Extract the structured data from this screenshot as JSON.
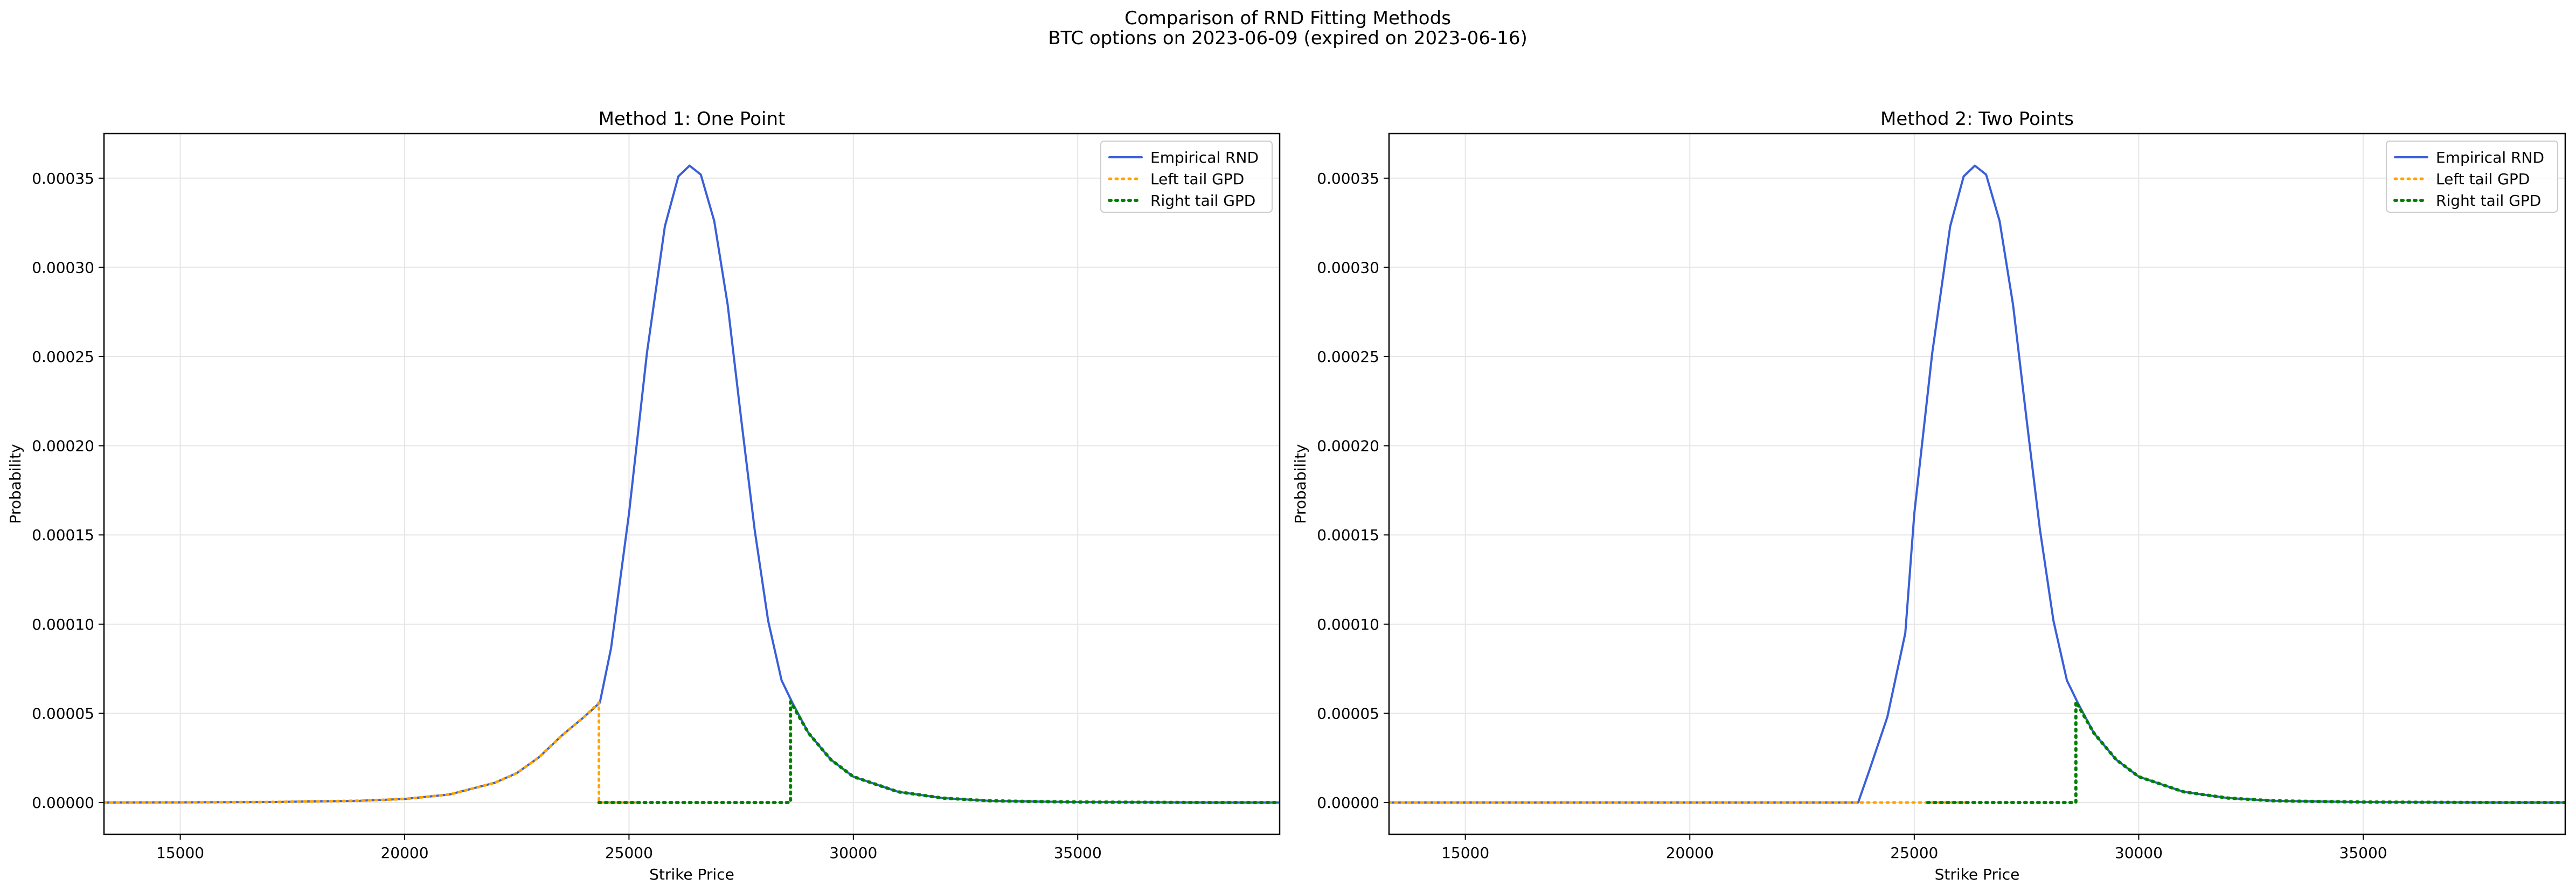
{
  "figure": {
    "suptitle_line1": "Comparison of RND Fitting Methods",
    "suptitle_line2": "BTC options on 2023-06-09 (expired on 2023-06-16)"
  },
  "colors": {
    "empirical": "#3a5fd9",
    "left_tail": "#ffa500",
    "right_tail": "#008000",
    "grid": "#e6e6e6",
    "axes": "#000000",
    "legend_border": "#cccccc"
  },
  "chart_data": [
    {
      "type": "line",
      "title": "Method 1: One Point",
      "xlabel": "Strike Price",
      "ylabel": "Probability",
      "xlim": [
        13300,
        39500
      ],
      "ylim": [
        -1.78e-05,
        0.000375
      ],
      "xticks": [
        15000,
        20000,
        25000,
        30000,
        35000
      ],
      "xtick_labels": [
        "15000",
        "20000",
        "25000",
        "30000",
        "35000"
      ],
      "yticks": [
        0,
        5e-05,
        0.0001,
        0.00015,
        0.0002,
        0.00025,
        0.0003,
        0.00035
      ],
      "ytick_labels": [
        "0.00000",
        "0.00005",
        "0.00010",
        "0.00015",
        "0.00020",
        "0.00025",
        "0.00030",
        "0.00035"
      ],
      "grid": true,
      "legend_position": "top-right",
      "legend": [
        "Empirical RND",
        "Left tail GPD",
        "Right tail GPD"
      ],
      "series": [
        {
          "name": "Empirical RND",
          "style": "solid",
          "x": [
            13300,
            15000,
            17000,
            19000,
            20000,
            21000,
            22000,
            22500,
            23000,
            23500,
            24000,
            24350,
            24600,
            25000,
            25400,
            25800,
            26100,
            26350,
            26600,
            26900,
            27200,
            27500,
            27800,
            28100,
            28400,
            28650,
            29000,
            29500,
            30000,
            31000,
            32000,
            33000,
            34000,
            35000,
            36000,
            37000,
            38000,
            39500
          ],
          "y": [
            0.0,
            1e-07,
            3e-07,
            1e-06,
            2e-06,
            4.5e-06,
            1.1e-05,
            1.65e-05,
            2.55e-05,
            3.75e-05,
            4.8e-05,
            5.6e-05,
            8.65e-05,
            0.000162,
            0.000252,
            0.000323,
            0.000351,
            0.000357,
            0.000352,
            0.000326,
            0.000279,
            0.000215,
            0.000153,
            0.000102,
            6.85e-05,
            5.55e-05,
            3.9e-05,
            2.4e-05,
            1.45e-05,
            6e-06,
            2.5e-06,
            1e-06,
            6e-07,
            3e-07,
            2e-07,
            1e-07,
            0.0,
            0.0
          ]
        },
        {
          "name": "Left tail GPD",
          "style": "dotted",
          "x": [
            13300,
            15000,
            17000,
            19000,
            20000,
            21000,
            22000,
            22500,
            23000,
            23500,
            24000,
            24330,
            24330,
            25200
          ],
          "y": [
            0.0,
            1e-07,
            3e-07,
            1e-06,
            2e-06,
            4.5e-06,
            1.1e-05,
            1.65e-05,
            2.55e-05,
            3.75e-05,
            4.8e-05,
            5.6e-05,
            0.0,
            0.0
          ]
        },
        {
          "name": "Right tail GPD",
          "style": "dotted",
          "x": [
            24330,
            28600,
            28600,
            29000,
            29500,
            30000,
            31000,
            32000,
            33000,
            34000,
            35000,
            36000,
            37000,
            38000,
            39500
          ],
          "y": [
            0.0,
            0.0,
            5.65e-05,
            3.9e-05,
            2.4e-05,
            1.45e-05,
            6e-06,
            2.5e-06,
            1e-06,
            6e-07,
            3e-07,
            2e-07,
            1e-07,
            0.0,
            0.0
          ]
        }
      ]
    },
    {
      "type": "line",
      "title": "Method 2: Two Points",
      "xlabel": "Strike Price",
      "ylabel": "Probability",
      "xlim": [
        13300,
        39500
      ],
      "ylim": [
        -1.78e-05,
        0.000375
      ],
      "xticks": [
        15000,
        20000,
        25000,
        30000,
        35000
      ],
      "xtick_labels": [
        "15000",
        "20000",
        "25000",
        "30000",
        "35000"
      ],
      "yticks": [
        0,
        5e-05,
        0.0001,
        0.00015,
        0.0002,
        0.00025,
        0.0003,
        0.00035
      ],
      "ytick_labels": [
        "0.00000",
        "0.00005",
        "0.00010",
        "0.00015",
        "0.00020",
        "0.00025",
        "0.00030",
        "0.00035"
      ],
      "grid": true,
      "legend_position": "top-right",
      "legend": [
        "Empirical RND",
        "Left tail GPD",
        "Right tail GPD"
      ],
      "series": [
        {
          "name": "Empirical RND",
          "style": "solid",
          "x": [
            13300,
            20000,
            23000,
            23750,
            24000,
            24400,
            24800,
            25000,
            25400,
            25800,
            26100,
            26350,
            26600,
            26900,
            27200,
            27500,
            27800,
            28100,
            28400,
            28650,
            29000,
            29500,
            30000,
            31000,
            32000,
            33000,
            34000,
            35000,
            36000,
            37000,
            38000,
            39500
          ],
          "y": [
            0.0,
            0.0,
            0.0,
            0.0,
            1.8e-05,
            4.8e-05,
            9.5e-05,
            0.000162,
            0.000252,
            0.000323,
            0.000351,
            0.000357,
            0.000352,
            0.000326,
            0.000279,
            0.000215,
            0.000153,
            0.000102,
            6.85e-05,
            5.55e-05,
            3.9e-05,
            2.4e-05,
            1.45e-05,
            6e-06,
            2.5e-06,
            1e-06,
            6e-07,
            3e-07,
            2e-07,
            1e-07,
            0.0,
            0.0
          ]
        },
        {
          "name": "Left tail GPD",
          "style": "dotted",
          "x": [
            13300,
            20000,
            25000,
            26200
          ],
          "y": [
            0.0,
            0.0,
            0.0,
            0.0
          ]
        },
        {
          "name": "Right tail GPD",
          "style": "dotted",
          "x": [
            25300,
            28600,
            28600,
            29000,
            29500,
            30000,
            31000,
            32000,
            33000,
            34000,
            35000,
            36000,
            37000,
            38000,
            39500
          ],
          "y": [
            0.0,
            0.0,
            5.65e-05,
            3.9e-05,
            2.4e-05,
            1.45e-05,
            6e-06,
            2.5e-06,
            1e-06,
            6e-07,
            3e-07,
            2e-07,
            1e-07,
            0.0,
            0.0
          ]
        }
      ]
    }
  ]
}
